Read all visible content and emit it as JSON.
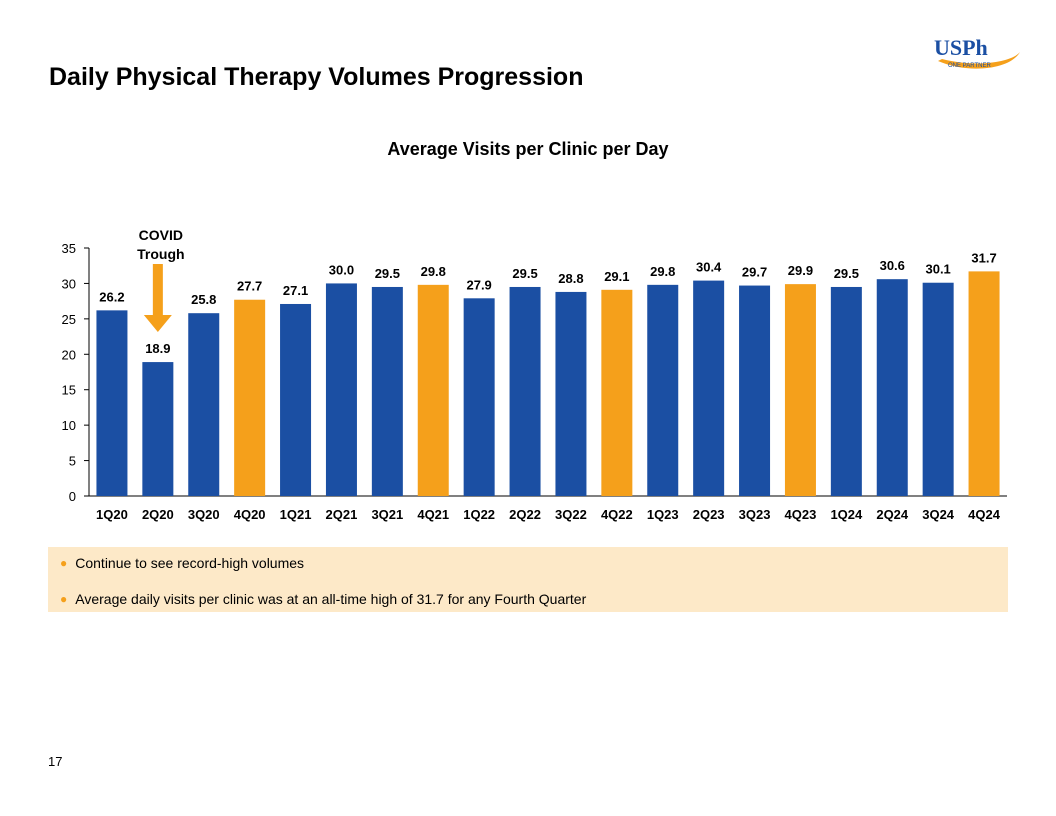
{
  "page": {
    "title": "Daily Physical Therapy Volumes Progression",
    "page_number": "17"
  },
  "logo": {
    "main_text": "USPh",
    "sub_text": "ONE PARTNER",
    "color": "#1b4fa3",
    "swoosh_color": "#f5a01b"
  },
  "chart_data": {
    "type": "bar",
    "title": "Average Visits per Clinic per Day",
    "xlabel": "",
    "ylabel": "",
    "categories": [
      "1Q20",
      "2Q20",
      "3Q20",
      "4Q20",
      "1Q21",
      "2Q21",
      "3Q21",
      "4Q21",
      "1Q22",
      "2Q22",
      "3Q22",
      "4Q22",
      "1Q23",
      "2Q23",
      "3Q23",
      "4Q23",
      "1Q24",
      "2Q24",
      "3Q24",
      "4Q24"
    ],
    "values": [
      26.2,
      18.9,
      25.8,
      27.7,
      27.1,
      30.0,
      29.5,
      29.8,
      27.9,
      29.5,
      28.8,
      29.1,
      29.8,
      30.4,
      29.7,
      29.9,
      29.5,
      30.6,
      30.1,
      31.7
    ],
    "value_labels": [
      "26.2",
      "18.9",
      "25.8",
      "27.7",
      "27.1",
      "30.0",
      "29.5",
      "29.8",
      "27.9",
      "29.5",
      "28.8",
      "29.1",
      "29.8",
      "30.4",
      "29.7",
      "29.9",
      "29.5",
      "30.6",
      "30.1",
      "31.7"
    ],
    "highlight_fourth_quarter": [
      false,
      false,
      false,
      true,
      false,
      false,
      false,
      true,
      false,
      false,
      false,
      true,
      false,
      false,
      false,
      true,
      false,
      false,
      false,
      true
    ],
    "ylim": [
      0,
      35
    ],
    "yticks": [
      0,
      5,
      10,
      15,
      20,
      25,
      30,
      35
    ],
    "grid": false,
    "colors": {
      "regular": "#1b4fa3",
      "highlight": "#f5a01b",
      "axis": "#000000"
    },
    "annotation": {
      "lines": [
        "COVID",
        "Trough"
      ],
      "category": "2Q20",
      "arrow_color": "#f5a01b"
    }
  },
  "notes": [
    "Continue to see record-high volumes",
    "Average daily visits per clinic was at an all-time high of 31.7 for any Fourth Quarter"
  ]
}
